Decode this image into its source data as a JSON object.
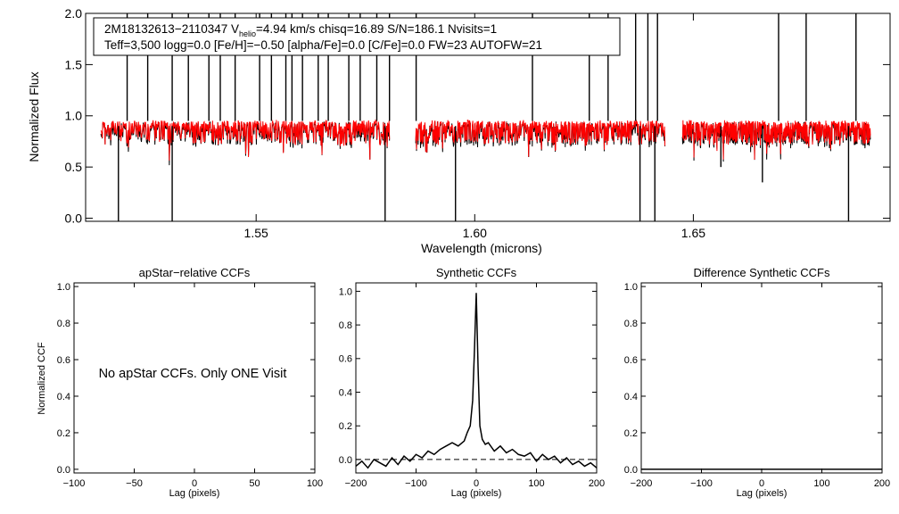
{
  "chart_data": [
    {
      "type": "line",
      "id": "spectrum",
      "xlabel": "Wavelength (microns)",
      "ylabel": "Normalized Flux",
      "xlim": [
        1.511,
        1.695
      ],
      "ylim": [
        -0.03,
        2.0
      ],
      "xticks": [
        1.55,
        1.6,
        1.65
      ],
      "xtick_labels": [
        "1.55",
        "1.60",
        "1.65"
      ],
      "yticks": [
        0.0,
        0.5,
        1.0,
        1.5,
        2.0
      ],
      "ytick_labels": [
        "0.0",
        "0.5",
        "1.0",
        "1.5",
        "2.0"
      ],
      "header_line1_prefix": "2M18132613−2110347  V",
      "header_line1_sub": "helio",
      "header_line1_suffix": "=4.94 km/s  chisq=16.89  S/N=186.1  Nvisits=1",
      "header_line2": "Teff=3,500 logg=0.0 [Fe/H]=−0.50 [alpha/Fe]=0.0 [C/Fe]=0.0 FW=23 AUTOFW=21",
      "chips": [
        [
          1.5145,
          1.5805
        ],
        [
          1.5865,
          1.6435
        ],
        [
          1.6475,
          1.6905
        ]
      ],
      "series": [
        {
          "name": "Observed spectrum",
          "color": "#000000"
        },
        {
          "name": "Best-fit model",
          "color": "#ff0000"
        }
      ],
      "spikes_up": [
        1.5205,
        1.5252,
        1.5308,
        1.5345,
        1.5392,
        1.5418,
        1.5452,
        1.5508,
        1.5535,
        1.5568,
        1.5582,
        1.5606,
        1.5642,
        1.5665,
        1.5712,
        1.5738,
        1.5776,
        1.5805,
        1.5866,
        1.6132,
        1.6262,
        1.6305,
        1.6368,
        1.6396,
        1.6418,
        1.6695,
        1.6758,
        1.6872
      ],
      "spikes_down": [
        [
          1.5185,
          -0.03
        ],
        [
          1.5308,
          -0.03
        ],
        [
          1.5795,
          -0.03
        ],
        [
          1.5956,
          -0.03
        ],
        [
          1.6378,
          -0.03
        ],
        [
          1.6412,
          -0.03
        ],
        [
          1.6563,
          0.5
        ],
        [
          1.6658,
          0.35
        ],
        [
          1.6855,
          -0.03
        ]
      ]
    },
    {
      "type": "line",
      "id": "apstar-ccf",
      "title": "apStar−relative CCFs",
      "xlabel": "Lag (pixels)",
      "ylabel": "Normalized CCF",
      "xlim": [
        -100,
        100
      ],
      "ylim": [
        -0.02,
        1.02
      ],
      "xticks": [
        -100,
        -50,
        0,
        50,
        100
      ],
      "xtick_labels": [
        "−100",
        "−50",
        "0",
        "50",
        "100"
      ],
      "yticks": [
        0.0,
        0.2,
        0.4,
        0.6,
        0.8,
        1.0
      ],
      "ytick_labels": [
        "0.0",
        "0.2",
        "0.4",
        "0.6",
        "0.8",
        "1.0"
      ],
      "annotation": "No apStar CCFs.  Only ONE Visit"
    },
    {
      "type": "line",
      "id": "synthetic-ccf",
      "title": "Synthetic CCFs",
      "xlabel": "Lag (pixels)",
      "xlim": [
        -200,
        200
      ],
      "ylim": [
        -0.08,
        1.05
      ],
      "xticks": [
        -200,
        -100,
        0,
        100,
        200
      ],
      "xtick_labels": [
        "−200",
        "−100",
        "0",
        "100",
        "200"
      ],
      "yticks": [
        0.0,
        0.2,
        0.4,
        0.6,
        0.8,
        1.0
      ],
      "ytick_labels": [
        "0.0",
        "0.2",
        "0.4",
        "0.6",
        "0.8",
        "1.0"
      ],
      "zero_line": 0.0,
      "x": [
        -200,
        -190,
        -180,
        -170,
        -160,
        -150,
        -140,
        -130,
        -120,
        -110,
        -100,
        -90,
        -80,
        -70,
        -60,
        -50,
        -40,
        -30,
        -20,
        -15,
        -10,
        -6,
        -3,
        0,
        3,
        6,
        10,
        15,
        20,
        30,
        40,
        50,
        60,
        70,
        80,
        90,
        100,
        110,
        120,
        130,
        140,
        150,
        160,
        170,
        180,
        190,
        200
      ],
      "y": [
        -0.04,
        -0.01,
        -0.05,
        0.0,
        -0.02,
        -0.04,
        0.01,
        -0.03,
        0.02,
        -0.01,
        0.03,
        0.01,
        0.05,
        0.03,
        0.06,
        0.08,
        0.1,
        0.08,
        0.11,
        0.16,
        0.2,
        0.35,
        0.65,
        0.99,
        0.55,
        0.2,
        0.12,
        0.09,
        0.1,
        0.05,
        0.08,
        0.04,
        0.06,
        0.03,
        0.02,
        0.04,
        -0.01,
        0.03,
        0.0,
        0.02,
        -0.02,
        0.01,
        -0.03,
        -0.01,
        -0.04,
        -0.02,
        -0.05
      ]
    },
    {
      "type": "line",
      "id": "difference-ccf",
      "title": "Difference Synthetic CCFs",
      "xlabel": "Lag (pixels)",
      "xlim": [
        -200,
        200
      ],
      "ylim": [
        -0.02,
        1.02
      ],
      "xticks": [
        -200,
        -100,
        0,
        100,
        200
      ],
      "xtick_labels": [
        "−200",
        "−100",
        "0",
        "100",
        "200"
      ],
      "yticks": [
        0.0,
        0.2,
        0.4,
        0.6,
        0.8,
        1.0
      ],
      "ytick_labels": [
        "0.0",
        "0.2",
        "0.4",
        "0.6",
        "0.8",
        "1.0"
      ],
      "x": [
        -200,
        200
      ],
      "y": [
        0.0,
        0.0
      ]
    }
  ]
}
